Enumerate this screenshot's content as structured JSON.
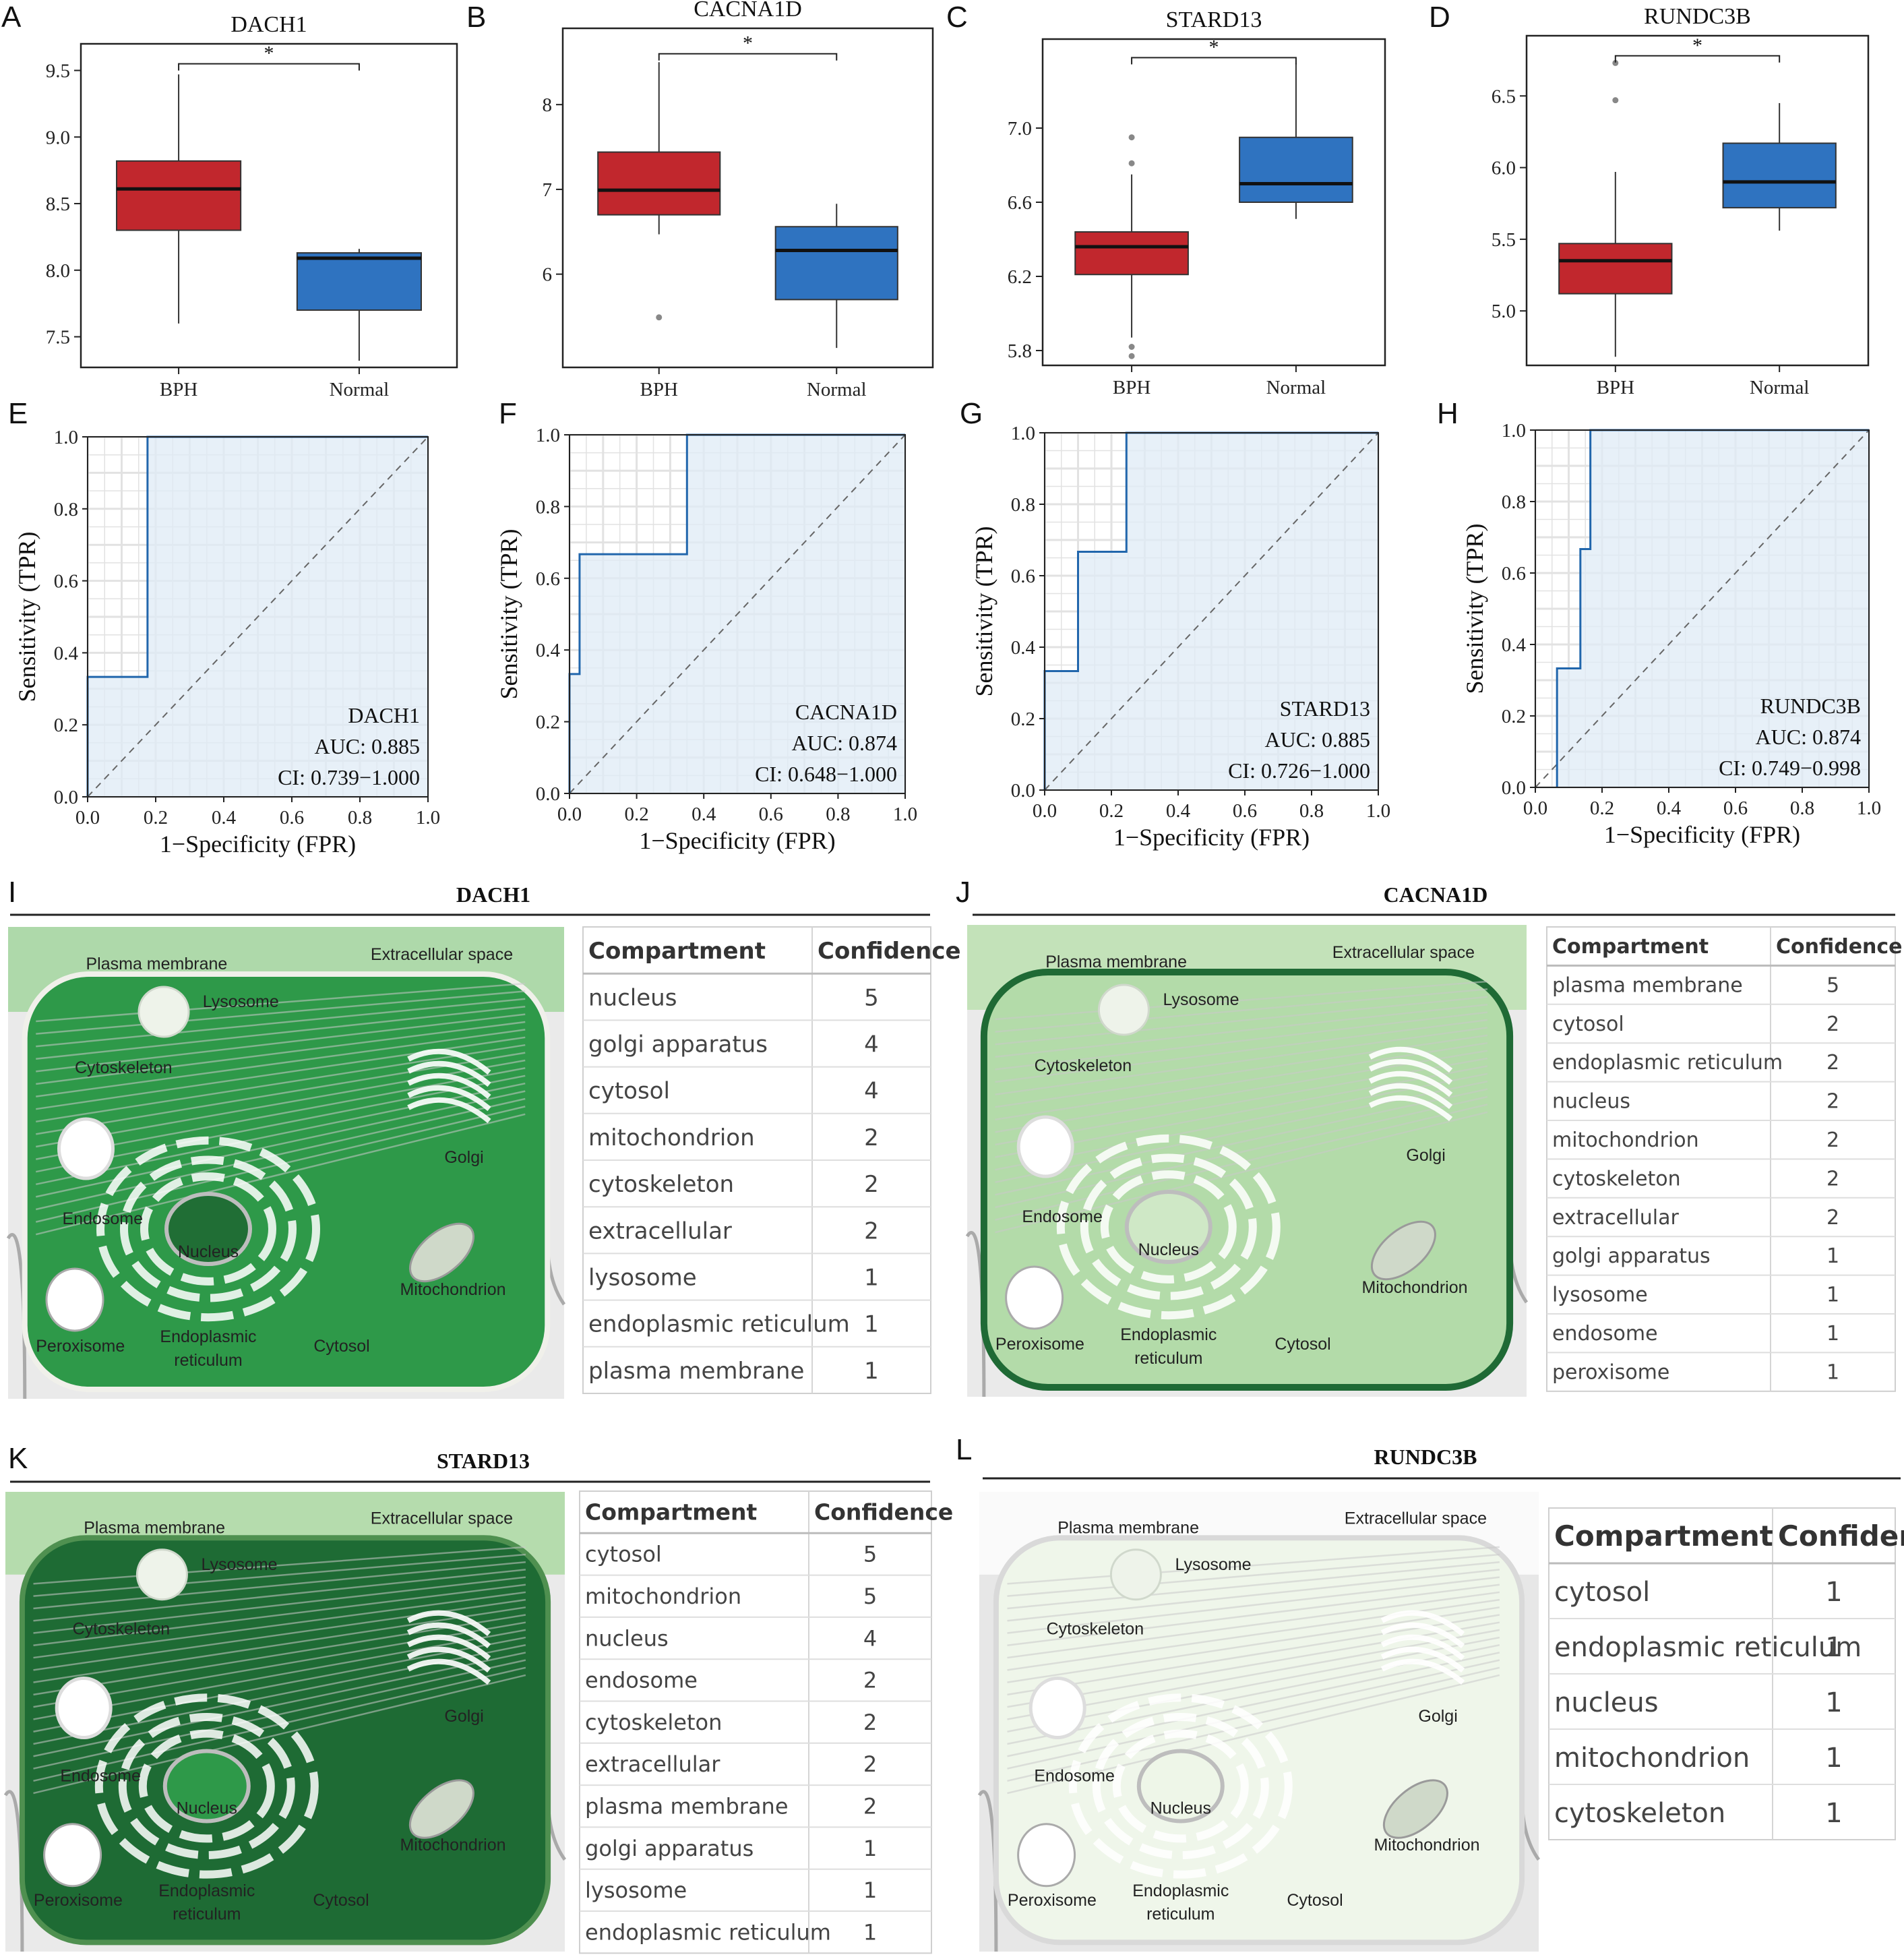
{
  "colors": {
    "bph": "#c1272d",
    "normal": "#2f73c0",
    "roc": "#2166ac",
    "roc_fill": "#dfebf5"
  },
  "chart_data": [
    {
      "panel": "A",
      "type": "box",
      "title": "DACH1",
      "categories": [
        "BPH",
        "Normal"
      ],
      "ylim": [
        7.27,
        9.7
      ],
      "yticks": [
        7.5,
        8.0,
        8.5,
        9.0,
        9.5
      ],
      "boxes": [
        {
          "name": "BPH",
          "q1": 8.3,
          "median": 8.61,
          "q3": 8.82,
          "whislo": 7.6,
          "whishi": 9.47,
          "outliers": []
        },
        {
          "name": "Normal",
          "q1": 7.7,
          "median": 8.09,
          "q3": 8.13,
          "whislo": 7.32,
          "whishi": 8.16,
          "outliers": []
        }
      ],
      "sig": "*",
      "sig_y": 9.55
    },
    {
      "panel": "B",
      "type": "box",
      "title": "CACNA1D",
      "categories": [
        "BPH",
        "Normal"
      ],
      "ylim": [
        4.9,
        8.9
      ],
      "yticks": [
        6,
        7,
        8
      ],
      "boxes": [
        {
          "name": "BPH",
          "q1": 6.7,
          "median": 6.99,
          "q3": 7.44,
          "whislo": 6.47,
          "whishi": 8.5,
          "outliers": [
            5.49
          ]
        },
        {
          "name": "Normal",
          "q1": 5.7,
          "median": 6.28,
          "q3": 6.56,
          "whislo": 5.13,
          "whishi": 6.83,
          "outliers": []
        }
      ],
      "sig": "*",
      "sig_y": 8.6
    },
    {
      "panel": "C",
      "type": "box",
      "title": "STARD13",
      "categories": [
        "BPH",
        "Normal"
      ],
      "ylim": [
        5.72,
        7.48
      ],
      "yticks": [
        5.8,
        6.2,
        6.6,
        7.0
      ],
      "boxes": [
        {
          "name": "BPH",
          "q1": 6.21,
          "median": 6.36,
          "q3": 6.44,
          "whislo": 5.87,
          "whishi": 6.75,
          "outliers": [
            6.95,
            6.81,
            5.82,
            5.77
          ]
        },
        {
          "name": "Normal",
          "q1": 6.6,
          "median": 6.7,
          "q3": 6.95,
          "whislo": 6.51,
          "whishi": 7.35,
          "outliers": []
        }
      ],
      "sig": "*",
      "sig_y": 7.38
    },
    {
      "panel": "D",
      "type": "box",
      "title": "RUNDC3B",
      "categories": [
        "BPH",
        "Normal"
      ],
      "ylim": [
        4.62,
        6.92
      ],
      "yticks": [
        5.0,
        5.5,
        6.0,
        6.5
      ],
      "boxes": [
        {
          "name": "BPH",
          "q1": 5.12,
          "median": 5.35,
          "q3": 5.47,
          "whislo": 4.68,
          "whishi": 5.97,
          "outliers": [
            6.73,
            6.47
          ]
        },
        {
          "name": "Normal",
          "q1": 5.72,
          "median": 5.9,
          "q3": 6.17,
          "whislo": 5.56,
          "whishi": 6.45,
          "outliers": []
        }
      ],
      "sig": "*",
      "sig_y": 6.78
    },
    {
      "panel": "E",
      "type": "roc",
      "xlabel": "1−Specificity (FPR)",
      "ylabel": "Sensitivity (TPR)",
      "xlim": [
        0,
        1
      ],
      "ylim": [
        0,
        1
      ],
      "ticks": [
        "0.0",
        "0.2",
        "0.4",
        "0.6",
        "0.8",
        "1.0"
      ],
      "gene": "DACH1",
      "auc": "AUC: 0.885",
      "ci": "CI: 0.739−1.000",
      "points": [
        [
          0,
          0
        ],
        [
          0,
          0.333
        ],
        [
          0.176,
          0.333
        ],
        [
          0.176,
          1
        ],
        [
          1,
          1
        ]
      ]
    },
    {
      "panel": "F",
      "type": "roc",
      "xlabel": "1−Specificity (FPR)",
      "ylabel": "Sensitivity (TPR)",
      "xlim": [
        0,
        1
      ],
      "ylim": [
        0,
        1
      ],
      "ticks": [
        "0.0",
        "0.2",
        "0.4",
        "0.6",
        "0.8",
        "1.0"
      ],
      "gene": "CACNA1D",
      "auc": "AUC: 0.874",
      "ci": "CI: 0.648−1.000",
      "points": [
        [
          0,
          0
        ],
        [
          0,
          0.333
        ],
        [
          0.03,
          0.333
        ],
        [
          0.03,
          0.667
        ],
        [
          0.35,
          0.667
        ],
        [
          0.35,
          1
        ],
        [
          1,
          1
        ]
      ]
    },
    {
      "panel": "G",
      "type": "roc",
      "xlabel": "1−Specificity (FPR)",
      "ylabel": "Sensitivity (TPR)",
      "xlim": [
        0,
        1
      ],
      "ylim": [
        0,
        1
      ],
      "ticks": [
        "0.0",
        "0.2",
        "0.4",
        "0.6",
        "0.8",
        "1.0"
      ],
      "gene": "STARD13",
      "auc": "AUC: 0.885",
      "ci": "CI: 0.726−1.000",
      "points": [
        [
          0,
          0
        ],
        [
          0,
          0.333
        ],
        [
          0.1,
          0.333
        ],
        [
          0.1,
          0.667
        ],
        [
          0.245,
          0.667
        ],
        [
          0.245,
          1
        ],
        [
          1,
          1
        ]
      ]
    },
    {
      "panel": "H",
      "type": "roc",
      "xlabel": "1−Specificity (FPR)",
      "ylabel": "Sensitivity (TPR)",
      "xlim": [
        0,
        1
      ],
      "ylim": [
        0,
        1
      ],
      "ticks": [
        "0.0",
        "0.2",
        "0.4",
        "0.6",
        "0.8",
        "1.0"
      ],
      "gene": "RUNDC3B",
      "auc": "AUC: 0.874",
      "ci": "CI: 0.749−0.998",
      "points": [
        [
          0.065,
          0
        ],
        [
          0.065,
          0.333
        ],
        [
          0.135,
          0.333
        ],
        [
          0.135,
          0.667
        ],
        [
          0.165,
          0.667
        ],
        [
          0.165,
          1
        ],
        [
          1,
          1
        ]
      ]
    }
  ],
  "organelle_labels": {
    "plasma_membrane": "Plasma membrane",
    "extracellular": "Extracellular space",
    "lysosome": "Lysosome",
    "cytoskeleton": "Cytoskeleton",
    "golgi": "Golgi",
    "endosome": "Endosome",
    "nucleus": "Nucleus",
    "mitochondrion": "Mitochondrion",
    "peroxisome": "Peroxisome",
    "er_line1": "Endoplasmic",
    "er_line2": "reticulum",
    "cytosol": "Cytosol"
  },
  "localization": [
    {
      "panel": "I",
      "gene": "DACH1",
      "header": [
        "Compartment",
        "Confidence"
      ],
      "rows": [
        [
          "nucleus",
          "5"
        ],
        [
          "golgi apparatus",
          "4"
        ],
        [
          "cytosol",
          "4"
        ],
        [
          "mitochondrion",
          "2"
        ],
        [
          "cytoskeleton",
          "2"
        ],
        [
          "extracellular",
          "2"
        ],
        [
          "lysosome",
          "1"
        ],
        [
          "endoplasmic reticulum",
          "1"
        ],
        [
          "plasma membrane",
          "1"
        ]
      ]
    },
    {
      "panel": "J",
      "gene": "CACNA1D",
      "header": [
        "Compartment",
        "Confidence"
      ],
      "rows": [
        [
          "plasma membrane",
          "5"
        ],
        [
          "cytosol",
          "2"
        ],
        [
          "endoplasmic reticulum",
          "2"
        ],
        [
          "nucleus",
          "2"
        ],
        [
          "mitochondrion",
          "2"
        ],
        [
          "cytoskeleton",
          "2"
        ],
        [
          "extracellular",
          "2"
        ],
        [
          "golgi apparatus",
          "1"
        ],
        [
          "lysosome",
          "1"
        ],
        [
          "endosome",
          "1"
        ],
        [
          "peroxisome",
          "1"
        ]
      ]
    },
    {
      "panel": "K",
      "gene": "STARD13",
      "header": [
        "Compartment",
        "Confidence"
      ],
      "rows": [
        [
          "cytosol",
          "5"
        ],
        [
          "mitochondrion",
          "5"
        ],
        [
          "nucleus",
          "4"
        ],
        [
          "endosome",
          "2"
        ],
        [
          "cytoskeleton",
          "2"
        ],
        [
          "extracellular",
          "2"
        ],
        [
          "plasma membrane",
          "2"
        ],
        [
          "golgi apparatus",
          "1"
        ],
        [
          "lysosome",
          "1"
        ],
        [
          "endoplasmic reticulum",
          "1"
        ]
      ]
    },
    {
      "panel": "L",
      "gene": "RUNDC3B",
      "header": [
        "Compartment",
        "Confidence"
      ],
      "rows": [
        [
          "cytosol",
          "1"
        ],
        [
          "endoplasmic reticulum",
          "1"
        ],
        [
          "nucleus",
          "1"
        ],
        [
          "mitochondrion",
          "1"
        ],
        [
          "cytoskeleton",
          "1"
        ]
      ]
    }
  ]
}
